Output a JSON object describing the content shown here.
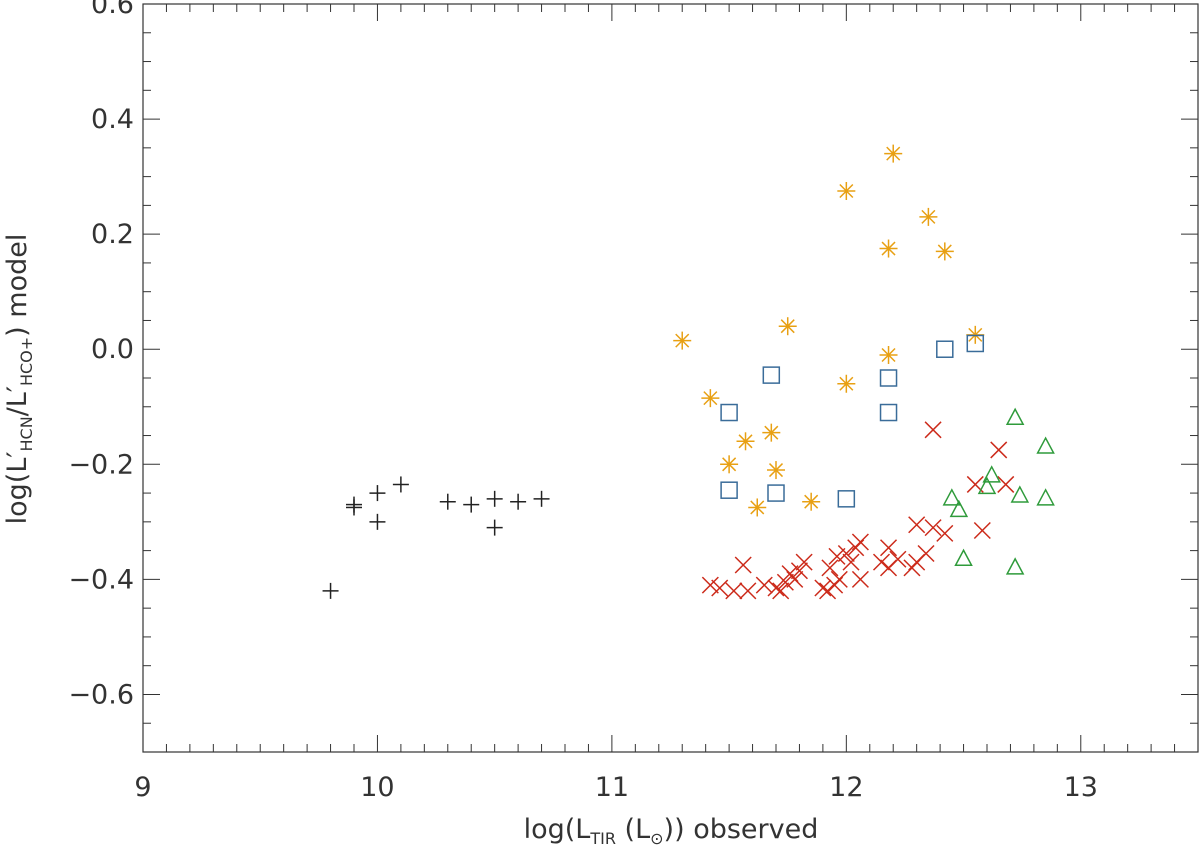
{
  "chart_data": {
    "type": "scatter",
    "xlabel": {
      "prefix": "log(L",
      "sub": "TIR",
      "middle": " (L",
      "sun": "⊙",
      "suffix": ")) observed"
    },
    "ylabel": {
      "prefix": "log(L′",
      "sub1": "HCN",
      "mid": "/L′",
      "sub2": "HCO+",
      "suffix": ") model"
    },
    "xlim": [
      9,
      13.5
    ],
    "ylim": [
      -0.7,
      0.6
    ],
    "x_ticks": [
      9,
      10,
      11,
      12,
      13
    ],
    "x_tick_labels": [
      "9",
      "10",
      "11",
      "12",
      "13"
    ],
    "x_minor_step": 0.1,
    "y_ticks": [
      0.6,
      0.4,
      0.2,
      0.0,
      -0.2,
      -0.4,
      -0.6
    ],
    "y_tick_labels": [
      "0.6",
      "0.4",
      "0.2",
      "0.0",
      "−0.2",
      "−0.4",
      "−0.6"
    ],
    "y_minor_step": 0.05,
    "grid": false,
    "series": [
      {
        "marker": "plus",
        "color": "#222222",
        "points": [
          [
            9.8,
            -0.42
          ],
          [
            9.9,
            -0.27
          ],
          [
            9.9,
            -0.275
          ],
          [
            10.0,
            -0.25
          ],
          [
            10.0,
            -0.3
          ],
          [
            10.1,
            -0.235
          ],
          [
            10.3,
            -0.265
          ],
          [
            10.4,
            -0.27
          ],
          [
            10.5,
            -0.26
          ],
          [
            10.5,
            -0.31
          ],
          [
            10.6,
            -0.265
          ],
          [
            10.7,
            -0.26
          ]
        ]
      },
      {
        "marker": "asterisk",
        "color": "#e8a013",
        "points": [
          [
            11.3,
            0.015
          ],
          [
            11.42,
            -0.085
          ],
          [
            11.5,
            -0.2
          ],
          [
            11.57,
            -0.16
          ],
          [
            11.62,
            -0.275
          ],
          [
            11.68,
            -0.145
          ],
          [
            11.7,
            -0.21
          ],
          [
            11.75,
            0.04
          ],
          [
            11.85,
            -0.265
          ],
          [
            12.0,
            0.275
          ],
          [
            12.0,
            -0.06
          ],
          [
            12.18,
            0.175
          ],
          [
            12.18,
            -0.01
          ],
          [
            12.2,
            0.34
          ],
          [
            12.35,
            0.23
          ],
          [
            12.42,
            0.17
          ],
          [
            12.55,
            0.025
          ]
        ]
      },
      {
        "marker": "square",
        "color": "#3a6c99",
        "points": [
          [
            11.5,
            -0.11
          ],
          [
            11.5,
            -0.245
          ],
          [
            11.68,
            -0.045
          ],
          [
            11.7,
            -0.25
          ],
          [
            12.0,
            -0.26
          ],
          [
            12.18,
            -0.05
          ],
          [
            12.18,
            -0.11
          ],
          [
            12.42,
            0.0
          ],
          [
            12.55,
            0.01
          ]
        ]
      },
      {
        "marker": "cross",
        "color": "#cc2a1a",
        "points": [
          [
            11.42,
            -0.41
          ],
          [
            11.46,
            -0.415
          ],
          [
            11.52,
            -0.42
          ],
          [
            11.56,
            -0.375
          ],
          [
            11.58,
            -0.42
          ],
          [
            11.65,
            -0.41
          ],
          [
            11.7,
            -0.415
          ],
          [
            11.72,
            -0.42
          ],
          [
            11.74,
            -0.405
          ],
          [
            11.76,
            -0.39
          ],
          [
            11.78,
            -0.4
          ],
          [
            11.8,
            -0.385
          ],
          [
            11.82,
            -0.37
          ],
          [
            11.9,
            -0.415
          ],
          [
            11.92,
            -0.42
          ],
          [
            11.93,
            -0.38
          ],
          [
            11.95,
            -0.41
          ],
          [
            11.96,
            -0.36
          ],
          [
            11.97,
            -0.4
          ],
          [
            12.0,
            -0.355
          ],
          [
            12.02,
            -0.37
          ],
          [
            12.04,
            -0.345
          ],
          [
            12.06,
            -0.335
          ],
          [
            12.06,
            -0.4
          ],
          [
            12.15,
            -0.37
          ],
          [
            12.18,
            -0.345
          ],
          [
            12.18,
            -0.38
          ],
          [
            12.22,
            -0.365
          ],
          [
            12.28,
            -0.38
          ],
          [
            12.3,
            -0.37
          ],
          [
            12.3,
            -0.305
          ],
          [
            12.34,
            -0.355
          ],
          [
            12.37,
            -0.31
          ],
          [
            12.37,
            -0.14
          ],
          [
            12.42,
            -0.32
          ],
          [
            12.55,
            -0.235
          ],
          [
            12.58,
            -0.315
          ],
          [
            12.65,
            -0.175
          ],
          [
            12.68,
            -0.235
          ]
        ]
      },
      {
        "marker": "triangle",
        "color": "#2f9b3b",
        "points": [
          [
            12.45,
            -0.26
          ],
          [
            12.48,
            -0.28
          ],
          [
            12.5,
            -0.365
          ],
          [
            12.6,
            -0.24
          ],
          [
            12.62,
            -0.22
          ],
          [
            12.72,
            -0.12
          ],
          [
            12.74,
            -0.255
          ],
          [
            12.72,
            -0.38
          ],
          [
            12.85,
            -0.17
          ],
          [
            12.85,
            -0.26
          ]
        ]
      }
    ]
  }
}
